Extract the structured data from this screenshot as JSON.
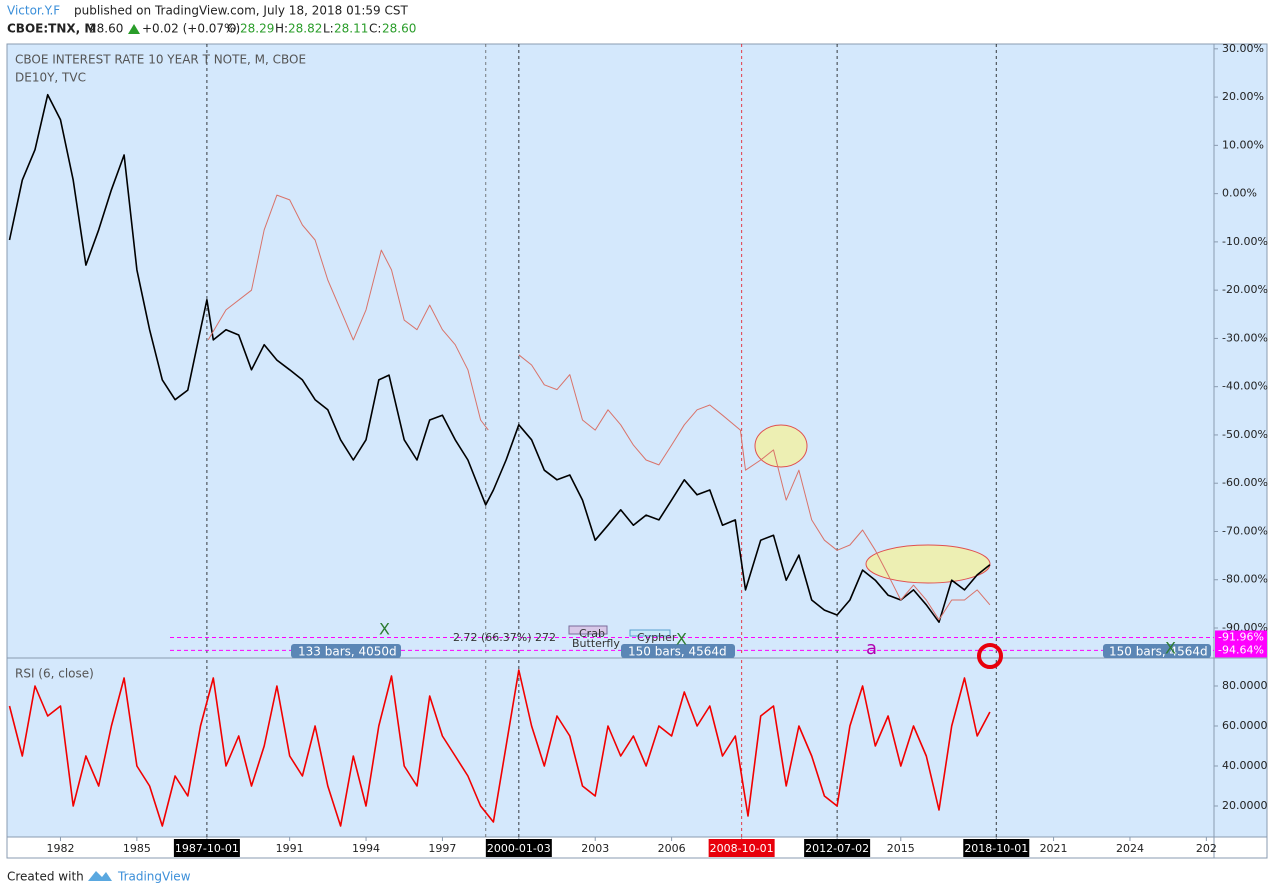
{
  "header": {
    "author": "Victor.Y.F",
    "published": "published on TradingView.com, July 18, 2018 01:59 CST"
  },
  "quote": {
    "symbol": "CBOE:TNX, M",
    "last": "28.60",
    "change": "+0.02 (+0.07%)",
    "o_label": "O:",
    "o": "28.29",
    "h_label": "H:",
    "h": "28.82",
    "l_label": "L:",
    "l": "28.11",
    "c_label": "C:",
    "c": "28.60"
  },
  "annotations": [
    "2.72 (66.37%) 272",
    "Crab",
    "Butterfly",
    "Cypher",
    "133 bars, 4050d",
    "150 bars, 4564d",
    "150 bars, 4564d",
    "a",
    "X",
    "X",
    "X"
  ],
  "footer": {
    "created": "Created with",
    "brand": "TradingView"
  },
  "chart_data": [
    {
      "type": "line",
      "title": "CBOE INTEREST RATE 10 YEAR T NOTE, M, CBOE",
      "subtitle": "DE10Y, TVC",
      "xlim": [
        1979.9,
        2027.3
      ],
      "ylim": [
        -95.8,
        31.0
      ],
      "xticks": [
        1982,
        1985,
        {
          "value": 1987.75,
          "label": "1987-10-01"
        },
        1991,
        1994,
        1997,
        {
          "value": 2000,
          "label": "2000-01-03"
        },
        2003,
        2006,
        {
          "value": 2008.75,
          "label": "2008-10-01"
        },
        {
          "value": 2012.5,
          "label": "2012-07-02"
        },
        2015,
        {
          "value": 2018.75,
          "label": "2018-10-01"
        },
        2021,
        2024,
        {
          "value": 2027,
          "label": "202"
        }
      ],
      "yticks": [
        {
          "value": 30,
          "label": "30.00%"
        },
        {
          "value": 20,
          "label": "20.00%"
        },
        {
          "value": 10,
          "label": "10.00%"
        },
        {
          "value": 0,
          "label": "0.00%"
        },
        {
          "value": -10,
          "label": "-10.00%"
        },
        {
          "value": -20,
          "label": "-20.00%"
        },
        {
          "value": -30,
          "label": "-30.00%"
        },
        {
          "value": -40,
          "label": "-40.00%"
        },
        {
          "value": -50,
          "label": "-50.00%"
        },
        {
          "value": -60,
          "label": "-60.00%"
        },
        {
          "value": -70,
          "label": "-70.00%"
        },
        {
          "value": -80,
          "label": "-80.00%"
        },
        {
          "value": -90,
          "label": "-90.00%"
        }
      ],
      "vlines": [
        {
          "x": 1987.75,
          "color": "#000000"
        },
        {
          "x": 1998.7,
          "color": "#555555"
        },
        {
          "x": 2000,
          "color": "#000000"
        },
        {
          "x": 2008.75,
          "color": "#e8000b"
        },
        {
          "x": 2012.5,
          "color": "#000000"
        },
        {
          "x": 2018.75,
          "color": "#000000"
        }
      ],
      "price_tags": [
        {
          "value": -91.96,
          "label": "-91.96%"
        },
        {
          "value": -94.64,
          "label": "-94.64%"
        }
      ],
      "price_tag_color": "#ff00ff",
      "series": [
        {
          "x": [
            1980.0,
            1980.5,
            1981.0,
            1981.5,
            1982.0,
            1982.5,
            1983.0,
            1983.5,
            1984.0,
            1984.5,
            1985.0,
            1985.5,
            1986.0,
            1986.5,
            1987.0,
            1987.5,
            1987.75,
            1988.0,
            1988.5,
            1989.0,
            1989.5,
            1990.0,
            1990.5,
            1991.0,
            1991.5,
            1992.0,
            1992.5,
            1993.0,
            1993.5,
            1994.0,
            1994.5,
            1994.9,
            1995.5,
            1996.0,
            1996.5,
            1997.0,
            1997.5,
            1998.0,
            1998.7,
            1999.0,
            1999.5,
            2000.0,
            2000.5,
            2001.0,
            2001.5,
            2002.0,
            2002.5,
            2003.0,
            2003.5,
            2004.0,
            2004.5,
            2005.0,
            2005.5,
            2006.0,
            2006.5,
            2007.0,
            2007.5,
            2008.0,
            2008.5,
            2008.9,
            2009.5,
            2010.0,
            2010.5,
            2011.0,
            2011.5,
            2012.0,
            2012.5,
            2013.0,
            2013.5,
            2014.0,
            2014.5,
            2015.0,
            2015.5,
            2016.0,
            2016.5,
            2017.0,
            2017.5,
            2018.0,
            2018.5
          ],
          "values": [
            -9.6,
            2.8,
            9.1,
            20.5,
            15.3,
            2.8,
            -14.8,
            -7.5,
            0.8,
            8.0,
            -15.8,
            -28.2,
            -38.6,
            -42.7,
            -40.7,
            -28.2,
            -22.0,
            -30.3,
            -28.2,
            -29.3,
            -36.5,
            -31.3,
            -34.5,
            -36.5,
            -38.6,
            -42.7,
            -44.8,
            -51.0,
            -55.2,
            -51.0,
            -38.6,
            -37.6,
            -51.0,
            -55.2,
            -46.9,
            -45.9,
            -51.0,
            -55.2,
            -64.5,
            -61.4,
            -55.2,
            -47.9,
            -51.0,
            -57.3,
            -59.3,
            -58.3,
            -63.5,
            -71.8,
            -68.7,
            -65.5,
            -68.7,
            -66.6,
            -67.6,
            -63.5,
            -59.3,
            -62.4,
            -61.4,
            -68.7,
            -67.6,
            -82.1,
            -71.8,
            -70.8,
            -80.1,
            -74.9,
            -84.2,
            -86.3,
            -87.3,
            -84.2,
            -78.0,
            -80.1,
            -83.2,
            -84.2,
            -82.1,
            -85.2,
            -88.8,
            -80.1,
            -82.1,
            -79.0,
            -76.9
          ],
          "color": "#000000"
        },
        {
          "x": [
            1987.8,
            1988.5,
            1989.5,
            1990.0,
            1990.5,
            1991.0,
            1991.5,
            1992.0,
            1992.5,
            1993.0,
            1993.5,
            1994.0,
            1994.6,
            1995.0,
            1995.5,
            1996.0,
            1996.5,
            1997.0,
            1997.5,
            1998.0,
            1998.5,
            1998.8,
            1999.5,
            2000.0,
            2000.5,
            2001.0,
            2001.5,
            2002.0,
            2002.5,
            2003.0,
            2003.5,
            2004.0,
            2004.5,
            2005.0,
            2005.5,
            2006.0,
            2006.5,
            2007.0,
            2007.5,
            2008.0,
            2008.7,
            2008.9,
            2009.5,
            2010.0,
            2010.5,
            2011.0,
            2011.5,
            2012.0,
            2012.5,
            2013.0,
            2013.5,
            2014.0,
            2014.5,
            2015.0,
            2015.5,
            2016.0,
            2016.5,
            2017.0,
            2017.5,
            2018.0,
            2018.5
          ],
          "values": [
            -30.3,
            -24.1,
            -20.0,
            -7.5,
            -0.3,
            -1.3,
            -6.5,
            -9.6,
            -17.9,
            -24.1,
            -30.3,
            -24.1,
            -11.7,
            -15.8,
            -26.2,
            -28.2,
            -23.1,
            -28.2,
            -31.3,
            -36.5,
            -46.9,
            -49.0,
            null,
            -33.4,
            -35.5,
            -39.6,
            -40.6,
            -37.5,
            -46.9,
            -49.0,
            -44.8,
            -47.9,
            -52.1,
            -55.2,
            -56.2,
            -52.1,
            -47.9,
            -44.8,
            -43.8,
            -45.9,
            -49.0,
            -57.3,
            -55.2,
            -53.1,
            -63.5,
            -57.3,
            -67.6,
            -71.8,
            -73.9,
            -72.8,
            -69.7,
            -73.9,
            -79.0,
            -84.2,
            -81.1,
            -84.2,
            -88.3,
            -84.2,
            -84.2,
            -82.1,
            -85.2
          ],
          "color": "#d9736a"
        }
      ]
    },
    {
      "type": "line",
      "title": "RSI (6, close)",
      "xlim": [
        1979.9,
        2027.3
      ],
      "ylim": [
        4.5,
        93
      ],
      "yticks": [
        {
          "value": 80,
          "label": "80.0000"
        },
        {
          "value": 60,
          "label": "60.0000"
        },
        {
          "value": 40,
          "label": "40.0000"
        },
        {
          "value": 20,
          "label": "20.0000"
        }
      ],
      "series": [
        {
          "x": [
            1980.0,
            1980.5,
            1981.0,
            1981.5,
            1982.0,
            1982.5,
            1983.0,
            1983.5,
            1984.0,
            1984.5,
            1985.0,
            1985.5,
            1986.0,
            1986.5,
            1987.0,
            1987.5,
            1988.0,
            1988.5,
            1989.0,
            1989.5,
            1990.0,
            1990.5,
            1991.0,
            1991.5,
            1992.0,
            1992.5,
            1993.0,
            1993.5,
            1994.0,
            1994.5,
            1995.0,
            1995.5,
            1996.0,
            1996.5,
            1997.0,
            1997.5,
            1998.0,
            1998.5,
            1999.0,
            1999.5,
            2000.0,
            2000.5,
            2001.0,
            2001.5,
            2002.0,
            2002.5,
            2003.0,
            2003.5,
            2004.0,
            2004.5,
            2005.0,
            2005.5,
            2006.0,
            2006.5,
            2007.0,
            2007.5,
            2008.0,
            2008.5,
            2009.0,
            2009.5,
            2010.0,
            2010.5,
            2011.0,
            2011.5,
            2012.0,
            2012.5,
            2013.0,
            2013.5,
            2014.0,
            2014.5,
            2015.0,
            2015.5,
            2016.0,
            2016.5,
            2017.0,
            2017.5,
            2018.0,
            2018.5
          ],
          "values": [
            70,
            45,
            80,
            65,
            70,
            20,
            45,
            30,
            60,
            84,
            40,
            30,
            10,
            35,
            25,
            60,
            84,
            40,
            55,
            30,
            50,
            80,
            45,
            35,
            60,
            30,
            10,
            45,
            20,
            60,
            85,
            40,
            30,
            75,
            55,
            45,
            35,
            20,
            12,
            50,
            88,
            60,
            40,
            65,
            55,
            30,
            25,
            60,
            45,
            55,
            40,
            60,
            55,
            77,
            60,
            70,
            45,
            55,
            15,
            65,
            70,
            30,
            60,
            45,
            25,
            20,
            60,
            80,
            50,
            65,
            40,
            60,
            45,
            18,
            60,
            84,
            55,
            67
          ],
          "color": "#f20000"
        }
      ]
    }
  ]
}
